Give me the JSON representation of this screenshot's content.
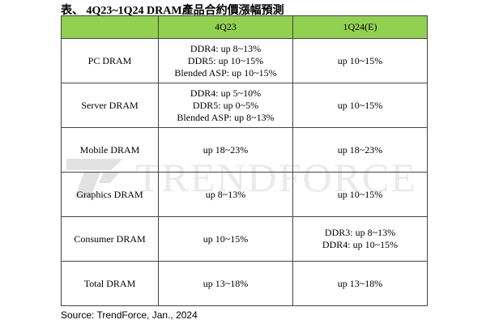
{
  "title": "表、 4Q23~1Q24 DRAM產品合約價漲幅預測",
  "watermark": "TRENDFORCE",
  "table": {
    "headers": [
      "",
      "4Q23",
      "1Q24(E)"
    ],
    "rows": [
      {
        "label": "PC DRAM",
        "q4_lines": [
          "DDR4: up 8~13%",
          "DDR5: up 10~15%",
          "Blended ASP: up 10~15%"
        ],
        "q1_lines": [
          "up 10~15%"
        ]
      },
      {
        "label": "Server DRAM",
        "q4_lines": [
          "DDR4: up 5~10%",
          "DDR5: up 0~5%",
          "Blended ASP: up 8~13%"
        ],
        "q1_lines": [
          "up 10~15%"
        ]
      },
      {
        "label": "Mobile DRAM",
        "q4_lines": [
          "up 18~23%"
        ],
        "q1_lines": [
          "up 18~23%"
        ]
      },
      {
        "label": "Graphics DRAM",
        "q4_lines": [
          "up 8~13%"
        ],
        "q1_lines": [
          "up 10~15%"
        ]
      },
      {
        "label": "Consumer DRAM",
        "q4_lines": [
          "up 10~15%"
        ],
        "q1_lines": [
          "DDR3: up 8~13%",
          "DDR4: up 10~15%"
        ]
      },
      {
        "label": "Total DRAM",
        "q4_lines": [
          "up 13~18%"
        ],
        "q1_lines": [
          "up 13~18%"
        ]
      }
    ]
  },
  "source": "Source: TrendForce, Jan., 2024",
  "colors": {
    "header_bg": "#92d050",
    "border": "#444444",
    "watermark": "#b5b5b5"
  }
}
